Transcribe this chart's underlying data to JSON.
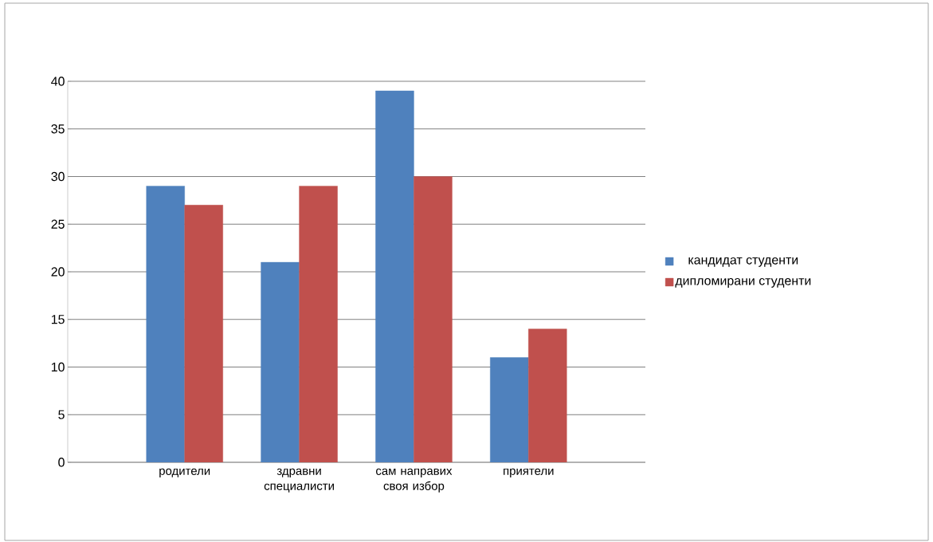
{
  "chart_data": {
    "type": "bar",
    "categories": [
      "родители",
      "здравни специалисти",
      "сам направих своя избор",
      "приятели"
    ],
    "series": [
      {
        "name": "кандидат студенти",
        "color": "#4f81bd",
        "values": [
          29,
          21,
          39,
          11
        ]
      },
      {
        "name": "дипломирани студенти",
        "color": "#c0504d",
        "values": [
          27,
          29,
          30,
          14
        ]
      }
    ],
    "ylim": [
      0,
      40
    ],
    "yticks": [
      0,
      5,
      10,
      15,
      20,
      25,
      30,
      35,
      40
    ],
    "grid": "y",
    "legend": "right"
  }
}
